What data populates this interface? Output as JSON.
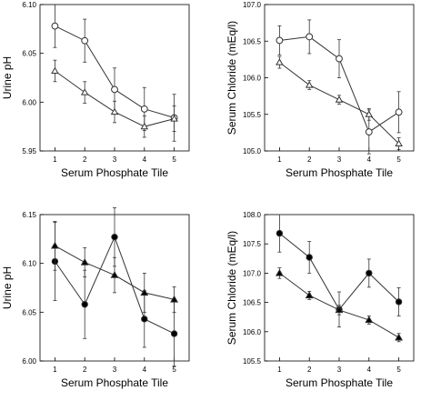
{
  "chart_data": [
    {
      "type": "line",
      "xlabel": "Serum Phosphate Tile",
      "ylabel": "Urine pH",
      "x": [
        1,
        2,
        3,
        4,
        5
      ],
      "xlim": [
        0.5,
        5.5
      ],
      "ylim": [
        5.95,
        6.1
      ],
      "yticks": [
        "5.95",
        "6.00",
        "6.05",
        "6.10"
      ],
      "series": [
        {
          "marker": "open-circle",
          "values": [
            6.078,
            6.063,
            6.013,
            5.993,
            5.984
          ],
          "err": [
            0.022,
            0.022,
            0.022,
            0.022,
            0.024
          ]
        },
        {
          "marker": "open-triangle",
          "values": [
            6.032,
            6.01,
            5.99,
            5.975,
            5.983
          ],
          "err": [
            0.011,
            0.011,
            0.011,
            0.011,
            0.013
          ]
        }
      ]
    },
    {
      "type": "line",
      "xlabel": "Serum Phosphate Tile",
      "ylabel": "Serum Chloride (mEq/l)",
      "x": [
        1,
        2,
        3,
        4,
        5
      ],
      "xlim": [
        0.5,
        5.5
      ],
      "ylim": [
        105.0,
        107.0
      ],
      "yticks": [
        "105.0",
        "105.5",
        "106.0",
        "106.5",
        "107.0"
      ],
      "series": [
        {
          "marker": "open-circle",
          "values": [
            106.51,
            106.56,
            106.26,
            105.26,
            105.53
          ],
          "err": [
            0.2,
            0.23,
            0.26,
            0.3,
            0.28
          ]
        },
        {
          "marker": "open-triangle",
          "values": [
            106.21,
            105.9,
            105.7,
            105.5,
            105.1
          ],
          "err": [
            0.08,
            0.06,
            0.06,
            0.08,
            0.08
          ]
        }
      ]
    },
    {
      "type": "line",
      "xlabel": "Serum Phosphate Tile",
      "ylabel": "Urine pH",
      "x": [
        1,
        2,
        3,
        4,
        5
      ],
      "xlim": [
        0.5,
        5.5
      ],
      "ylim": [
        6.0,
        6.15
      ],
      "yticks": [
        "6.00",
        "6.05",
        "6.10",
        "6.15"
      ],
      "series": [
        {
          "marker": "filled-circle",
          "values": [
            6.102,
            6.058,
            6.127,
            6.043,
            6.028
          ],
          "err": [
            0.04,
            0.035,
            0.03,
            0.029,
            0.033
          ]
        },
        {
          "marker": "filled-triangle",
          "values": [
            6.118,
            6.101,
            6.088,
            6.07,
            6.063
          ],
          "err": [
            0.025,
            0.015,
            0.018,
            0.02,
            0.013
          ]
        }
      ]
    },
    {
      "type": "line",
      "xlabel": "Serum Phosphate Tile",
      "ylabel": "Serum Chloride (mEq/l)",
      "x": [
        1,
        2,
        3,
        4,
        5
      ],
      "xlim": [
        0.5,
        5.5
      ],
      "ylim": [
        105.5,
        108.0
      ],
      "yticks": [
        "105.5",
        "106.0",
        "106.5",
        "107.0",
        "107.5",
        "108.0"
      ],
      "series": [
        {
          "marker": "filled-circle",
          "values": [
            107.68,
            107.27,
            106.38,
            107.0,
            106.51
          ],
          "err": [
            0.32,
            0.27,
            0.3,
            0.24,
            0.24
          ]
        },
        {
          "marker": "filled-triangle",
          "values": [
            107.0,
            106.62,
            106.37,
            106.2,
            105.9
          ],
          "err": [
            0.09,
            0.07,
            0.08,
            0.07,
            0.07
          ]
        }
      ]
    }
  ]
}
